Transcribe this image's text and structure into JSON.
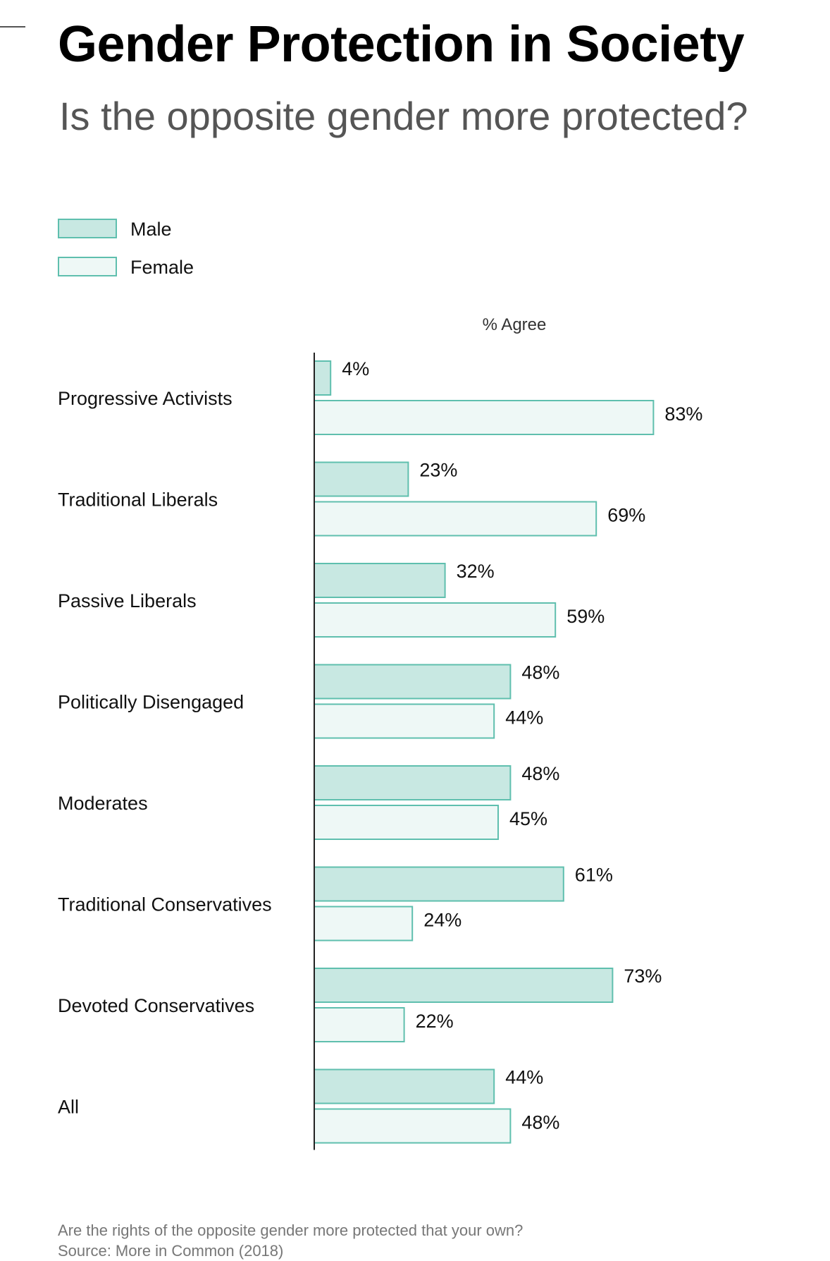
{
  "header": {
    "title": "Gender Protection in Society",
    "subtitle": "Is the opposite gender more protected?"
  },
  "footer": {
    "note": "Are the rights of the opposite gender more protected that your own?",
    "source": "Source: More in Common (2018)"
  },
  "colors": {
    "male_fill": "#c8e8e2",
    "female_fill": "#eef8f6",
    "bar_stroke": "#5fbfae",
    "axis": "#222222"
  },
  "chart_data": {
    "type": "bar",
    "orientation": "horizontal",
    "title": "Gender Protection in Society",
    "subtitle": "Is the opposite gender more protected?",
    "xlabel": "% Agree",
    "ylabel": "",
    "xlim": [
      0,
      100
    ],
    "grid": false,
    "legend": {
      "placement": "top-left",
      "entries": [
        "Male",
        "Female"
      ]
    },
    "categories": [
      "Progressive Activists",
      "Traditional Liberals",
      "Passive Liberals",
      "Politically Disengaged",
      "Moderates",
      "Traditional Conservatives",
      "Devoted Conservatives",
      "All"
    ],
    "series": [
      {
        "name": "Male",
        "values": [
          4,
          23,
          32,
          48,
          48,
          61,
          73,
          44
        ],
        "labels": [
          "4%",
          "23%",
          "32%",
          "48%",
          "48%",
          "61%",
          "73%",
          "44%"
        ]
      },
      {
        "name": "Female",
        "values": [
          83,
          69,
          59,
          44,
          45,
          24,
          22,
          48
        ],
        "labels": [
          "83%",
          "69%",
          "59%",
          "44%",
          "45%",
          "24%",
          "22%",
          "48%"
        ]
      }
    ]
  }
}
